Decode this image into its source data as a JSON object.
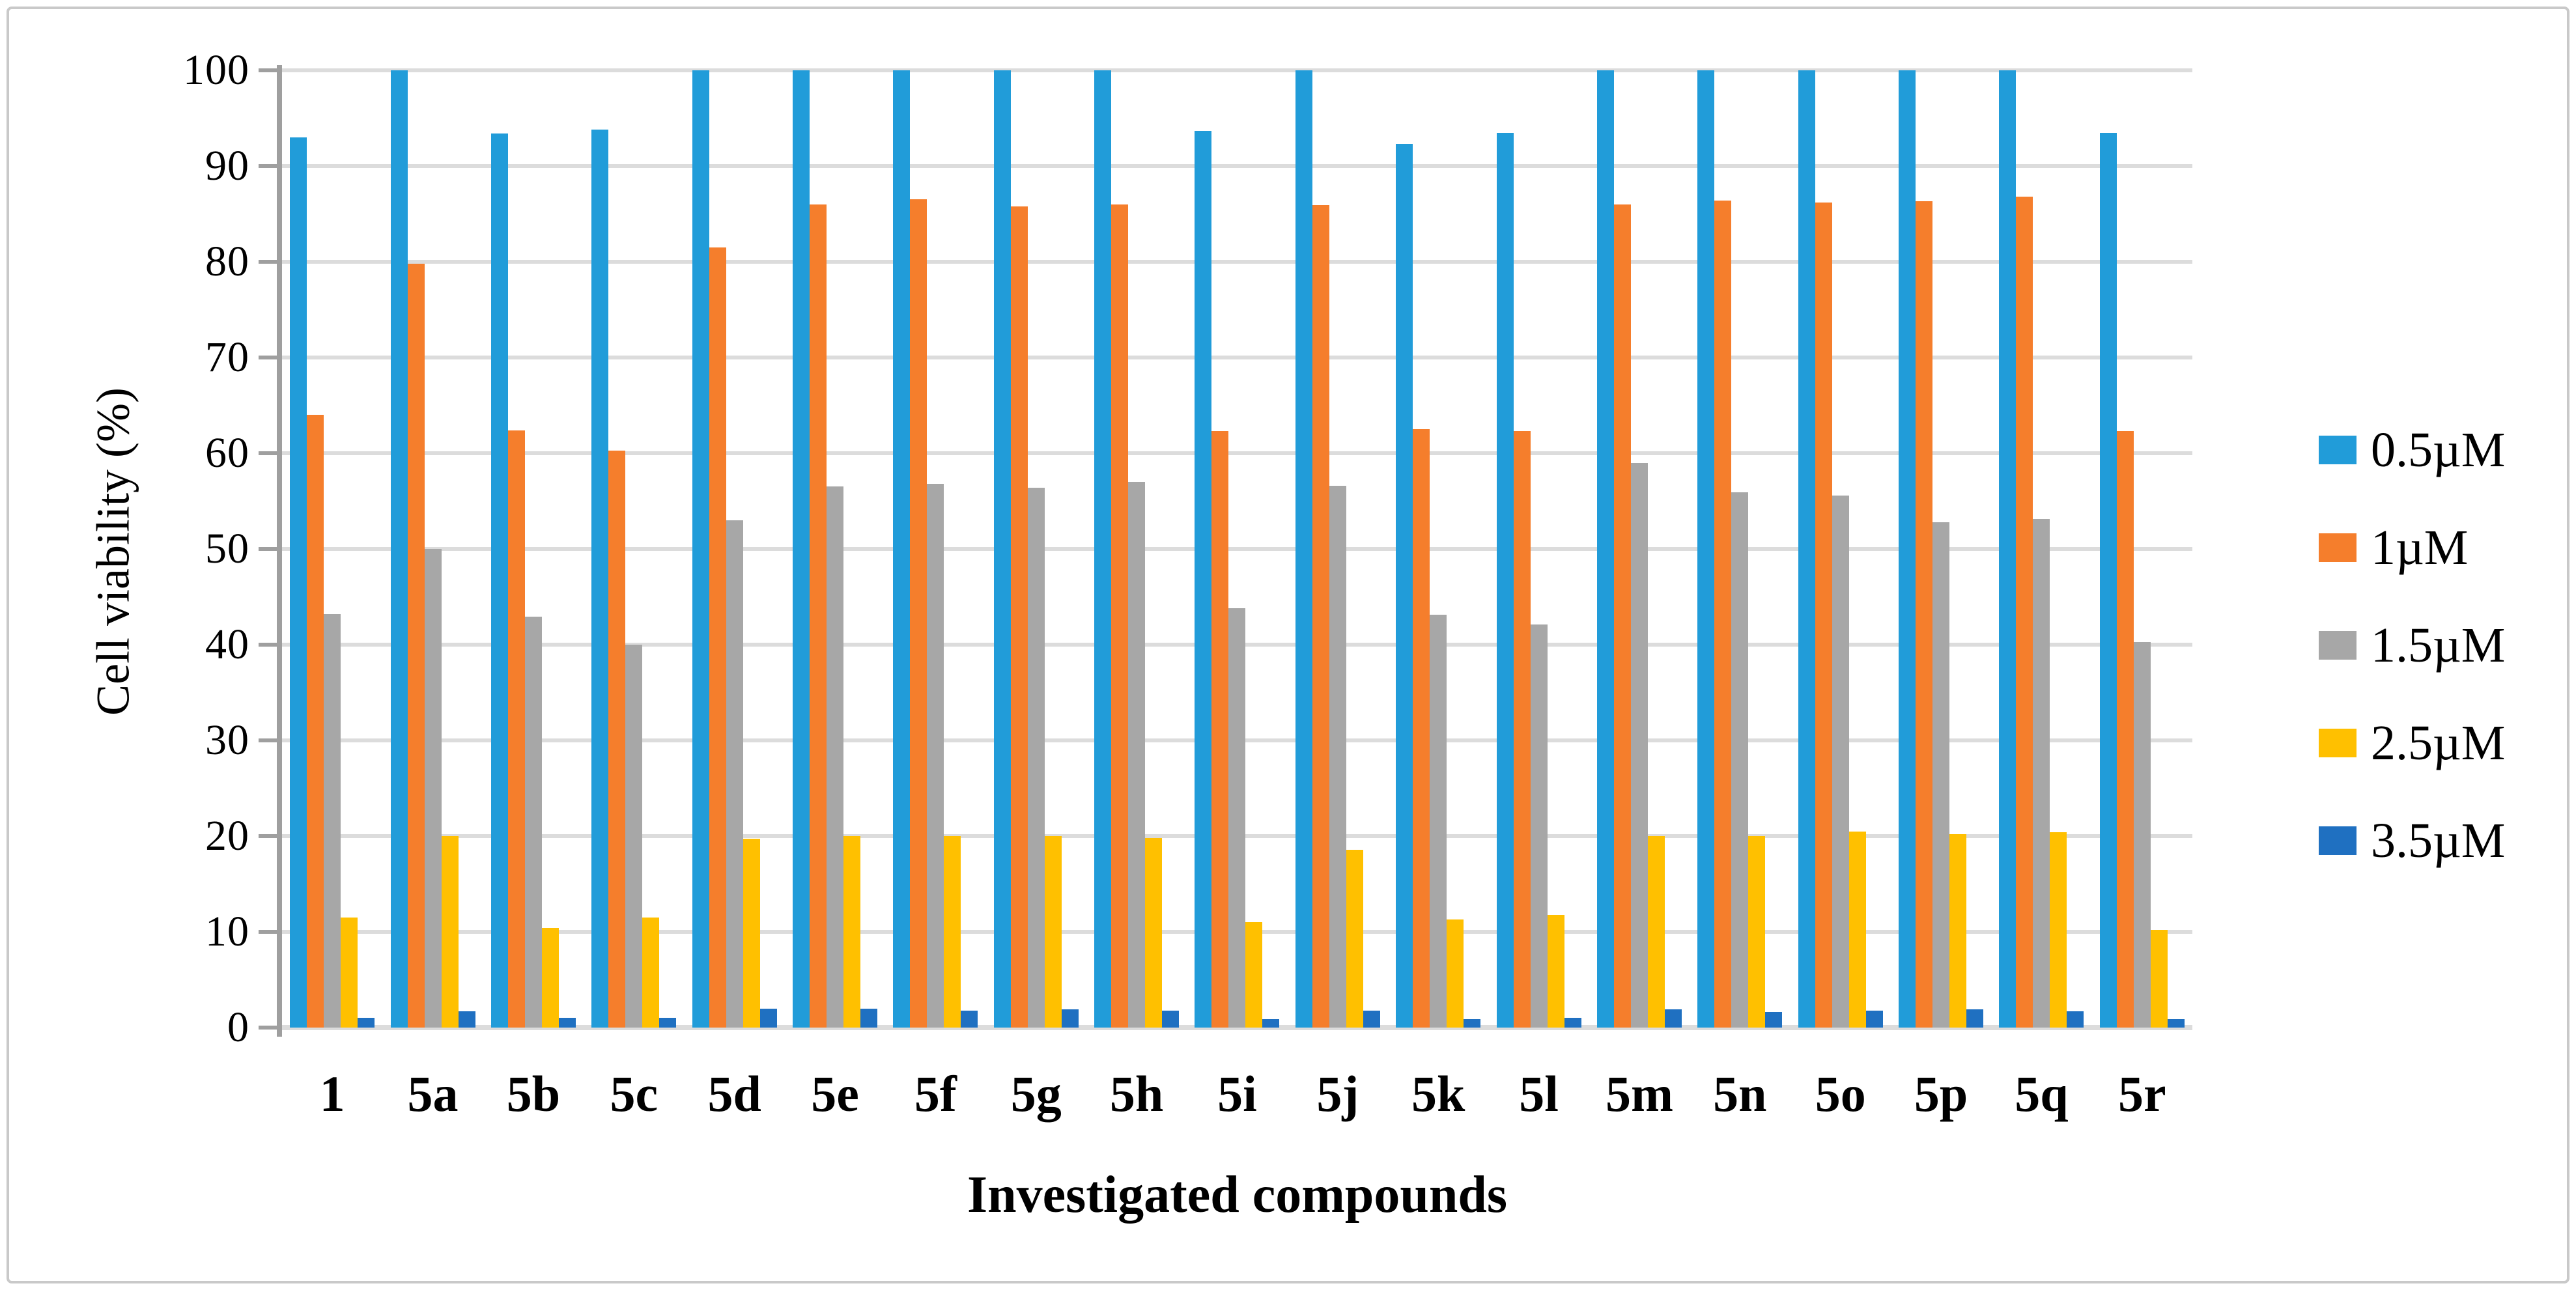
{
  "chart_data": {
    "type": "bar",
    "title": "",
    "xlabel": "Investigated compounds",
    "ylabel": "Cell viability (%)",
    "ylim": [
      0,
      100
    ],
    "yticks": [
      0,
      10,
      20,
      30,
      40,
      50,
      60,
      70,
      80,
      90,
      100
    ],
    "grid": true,
    "legend_position": "right",
    "categories": [
      "1",
      "5a",
      "5b",
      "5c",
      "5d",
      "5e",
      "5f",
      "5g",
      "5h",
      "5i",
      "5j",
      "5k",
      "5l",
      "5m",
      "5n",
      "5o",
      "5p",
      "5q",
      "5r"
    ],
    "series": [
      {
        "name": "0.5µM",
        "color": "#219cd9",
        "values": [
          93.0,
          100,
          93.4,
          93.8,
          100,
          100,
          100,
          100,
          100,
          93.7,
          100,
          92.3,
          93.5,
          100,
          100,
          100,
          100,
          100,
          93.5
        ]
      },
      {
        "name": "1µM",
        "color": "#f57e2c",
        "values": [
          64.0,
          79.8,
          62.4,
          60.3,
          81.5,
          86.0,
          86.5,
          85.8,
          86.0,
          62.3,
          85.9,
          62.5,
          62.3,
          86.0,
          86.4,
          86.2,
          86.3,
          86.8,
          62.3
        ]
      },
      {
        "name": "1.5µM",
        "color": "#a7a7a7",
        "values": [
          43.2,
          50.0,
          42.9,
          40.0,
          53.0,
          56.5,
          56.8,
          56.4,
          57.0,
          43.8,
          56.6,
          43.1,
          42.1,
          59.0,
          55.9,
          55.6,
          52.8,
          53.1,
          40.3
        ]
      },
      {
        "name": "2.5µM",
        "color": "#ffc000",
        "values": [
          11.5,
          20.0,
          10.4,
          11.5,
          19.7,
          20.0,
          20.0,
          20.0,
          19.8,
          11.0,
          18.6,
          11.3,
          11.8,
          20.0,
          20.0,
          20.5,
          20.2,
          20.4,
          10.2
        ]
      },
      {
        "name": "3.5µM",
        "color": "#1f70c1",
        "values": [
          1.0,
          1.7,
          1.0,
          1.0,
          2.0,
          2.0,
          1.8,
          1.9,
          1.8,
          0.9,
          1.8,
          0.9,
          1.0,
          1.9,
          1.6,
          1.8,
          1.9,
          1.7,
          0.9
        ]
      }
    ],
    "style": {
      "gridline_color": "#dcdcdc",
      "axis_color": "#9f9f9f",
      "frame_border_color": "#c9c9c9"
    }
  }
}
